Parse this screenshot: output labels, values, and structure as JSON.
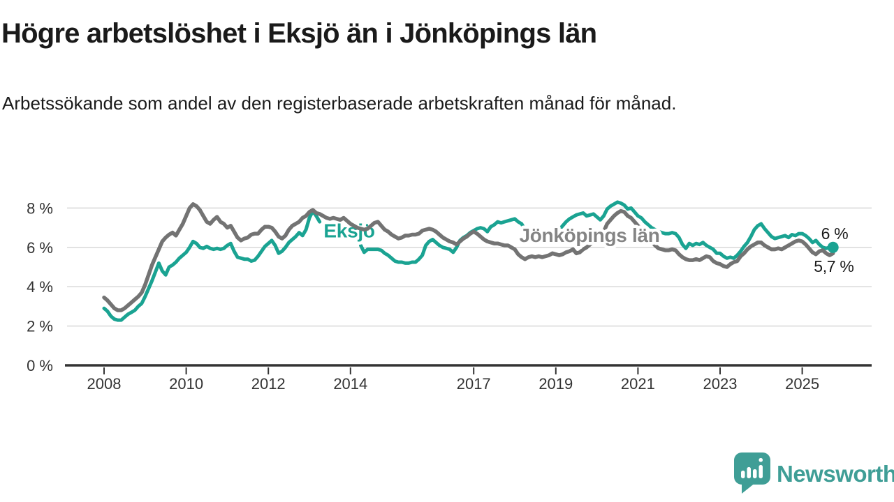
{
  "header": {
    "title": "Högre arbetslöshet i Eksjö än i Jönköpings län",
    "subtitle": "Arbetssökande som andel av den registerbaserade arbetskraften månad för månad."
  },
  "footer": {
    "logo_text": "Newsworthy"
  },
  "colors": {
    "eksjo_line": "#1aa392",
    "lan_line": "#737373",
    "lan_label": "#848484",
    "axis_text": "#333333",
    "gridline": "#d9d9d9",
    "axis_line": "#333333",
    "end_label_text": "#1a1a1a",
    "logo_teal": "#3f9e96",
    "background": "#ffffff"
  },
  "chart_data": {
    "type": "line",
    "title": "Högre arbetslöshet i Eksjö än i Jönköpings län",
    "subtitle": "Arbetssökande som andel av den registerbaserade arbetskraften månad för månad.",
    "unit": "%",
    "freq": "monthly",
    "x_start": "2008-01",
    "x_end": "2025-10",
    "ylim": [
      0,
      8.6
    ],
    "grid": "horizontal",
    "legend_position": "inline-labels",
    "y_ticks": [
      {
        "value": 8,
        "label": "8 %"
      },
      {
        "value": 6,
        "label": "6 %"
      },
      {
        "value": 4,
        "label": "4 %"
      },
      {
        "value": 2,
        "label": "2 %"
      },
      {
        "value": 0,
        "label": "0 %"
      }
    ],
    "x_ticks": [
      {
        "year": 2008,
        "label": "2008"
      },
      {
        "year": 2010,
        "label": "2010"
      },
      {
        "year": 2012,
        "label": "2012"
      },
      {
        "year": 2014,
        "label": "2014"
      },
      {
        "year": 2017,
        "label": "2017"
      },
      {
        "year": 2019,
        "label": "2019"
      },
      {
        "year": 2021,
        "label": "2021"
      },
      {
        "year": 2023,
        "label": "2023"
      },
      {
        "year": 2025,
        "label": "2025"
      }
    ],
    "series": [
      {
        "name": "Eksjö",
        "color": "#1aa392",
        "latest_value_label": "6 %",
        "values": [
          2.9,
          2.75,
          2.5,
          2.35,
          2.3,
          2.3,
          2.45,
          2.6,
          2.7,
          2.8,
          3.0,
          3.15,
          3.5,
          3.9,
          4.3,
          4.75,
          5.2,
          4.8,
          4.6,
          5.0,
          5.1,
          5.25,
          5.45,
          5.6,
          5.75,
          6.0,
          6.3,
          6.2,
          6.0,
          5.95,
          6.05,
          5.95,
          5.9,
          5.95,
          5.9,
          5.95,
          6.1,
          6.2,
          5.8,
          5.5,
          5.45,
          5.4,
          5.4,
          5.3,
          5.35,
          5.55,
          5.8,
          6.05,
          6.2,
          6.35,
          6.1,
          5.7,
          5.8,
          6.0,
          6.25,
          6.4,
          6.55,
          6.75,
          6.6,
          6.9,
          7.5,
          7.85,
          7.6,
          7.3,
          7.0,
          6.85,
          6.7,
          6.6,
          6.5,
          6.45,
          6.4,
          6.35,
          6.3,
          6.25,
          6.2,
          6.1,
          5.75,
          5.9,
          5.9,
          5.9,
          5.9,
          5.85,
          5.7,
          5.6,
          5.45,
          5.3,
          5.25,
          5.25,
          5.2,
          5.2,
          5.25,
          5.25,
          5.4,
          5.6,
          6.1,
          6.3,
          6.4,
          6.25,
          6.1,
          6.0,
          5.95,
          5.9,
          5.75,
          6.0,
          6.35,
          6.5,
          6.6,
          6.75,
          6.85,
          6.95,
          7.0,
          6.95,
          6.8,
          7.05,
          7.15,
          7.3,
          7.25,
          7.3,
          7.35,
          7.4,
          7.45,
          7.3,
          7.2,
          6.9,
          6.7,
          6.5,
          6.4,
          6.3,
          6.35,
          6.45,
          6.55,
          6.6,
          6.7,
          6.9,
          7.1,
          7.3,
          7.45,
          7.55,
          7.65,
          7.7,
          7.75,
          7.6,
          7.65,
          7.7,
          7.55,
          7.4,
          7.6,
          7.95,
          8.1,
          8.2,
          8.3,
          8.25,
          8.15,
          7.95,
          8.0,
          7.8,
          7.6,
          7.5,
          7.3,
          7.15,
          7.0,
          6.9,
          6.8,
          6.75,
          6.7,
          6.7,
          6.75,
          6.7,
          6.5,
          6.15,
          5.95,
          6.2,
          6.1,
          6.2,
          6.15,
          6.25,
          6.1,
          6.0,
          5.9,
          5.7,
          5.7,
          5.55,
          5.45,
          5.5,
          5.45,
          5.6,
          5.8,
          6.05,
          6.25,
          6.55,
          6.9,
          7.1,
          7.2,
          6.95,
          6.75,
          6.55,
          6.45,
          6.5,
          6.55,
          6.6,
          6.5,
          6.65,
          6.6,
          6.7,
          6.7,
          6.6,
          6.45,
          6.25,
          6.35,
          6.15,
          6.0,
          5.95,
          6.0,
          6.0
        ]
      },
      {
        "name": "Jönköpings län",
        "color": "#737373",
        "latest_value_label": "5,7 %",
        "values": [
          3.45,
          3.3,
          3.1,
          2.9,
          2.8,
          2.8,
          2.9,
          3.05,
          3.2,
          3.35,
          3.5,
          3.7,
          4.1,
          4.6,
          5.1,
          5.5,
          5.9,
          6.3,
          6.5,
          6.65,
          6.75,
          6.6,
          6.9,
          7.2,
          7.6,
          8.0,
          8.2,
          8.1,
          7.9,
          7.6,
          7.3,
          7.2,
          7.4,
          7.55,
          7.3,
          7.2,
          7.0,
          7.1,
          6.8,
          6.5,
          6.35,
          6.45,
          6.5,
          6.65,
          6.7,
          6.7,
          6.9,
          7.05,
          7.05,
          7.0,
          6.8,
          6.55,
          6.45,
          6.6,
          6.9,
          7.1,
          7.2,
          7.3,
          7.5,
          7.6,
          7.8,
          7.9,
          7.75,
          7.7,
          7.6,
          7.5,
          7.45,
          7.5,
          7.45,
          7.4,
          7.5,
          7.35,
          7.2,
          7.1,
          7.0,
          6.95,
          6.9,
          6.95,
          7.1,
          7.25,
          7.3,
          7.1,
          6.9,
          6.8,
          6.65,
          6.55,
          6.45,
          6.5,
          6.6,
          6.6,
          6.65,
          6.65,
          6.7,
          6.85,
          6.9,
          6.95,
          6.9,
          6.8,
          6.65,
          6.5,
          6.4,
          6.3,
          6.25,
          6.15,
          6.3,
          6.45,
          6.55,
          6.7,
          6.8,
          6.7,
          6.55,
          6.4,
          6.3,
          6.25,
          6.2,
          6.2,
          6.15,
          6.1,
          6.1,
          6.0,
          5.9,
          5.65,
          5.5,
          5.4,
          5.5,
          5.55,
          5.5,
          5.55,
          5.5,
          5.55,
          5.6,
          5.7,
          5.65,
          5.6,
          5.65,
          5.75,
          5.8,
          5.9,
          5.7,
          5.75,
          5.9,
          6.0,
          6.15,
          6.3,
          6.5,
          6.6,
          6.8,
          7.2,
          7.4,
          7.6,
          7.75,
          7.85,
          7.8,
          7.6,
          7.5,
          7.3,
          7.1,
          6.9,
          6.7,
          6.5,
          6.3,
          6.1,
          5.95,
          5.9,
          5.85,
          5.85,
          5.9,
          5.85,
          5.65,
          5.5,
          5.4,
          5.35,
          5.35,
          5.4,
          5.35,
          5.45,
          5.55,
          5.5,
          5.3,
          5.2,
          5.15,
          5.05,
          5.0,
          5.15,
          5.25,
          5.3,
          5.55,
          5.7,
          5.9,
          6.05,
          6.15,
          6.25,
          6.25,
          6.1,
          6.0,
          5.9,
          5.9,
          5.95,
          5.9,
          6.0,
          6.1,
          6.2,
          6.3,
          6.35,
          6.3,
          6.15,
          5.95,
          5.75,
          5.65,
          5.8,
          5.85,
          5.7,
          5.6,
          5.7
        ]
      }
    ],
    "annotations": [
      {
        "id": "eksjo-label",
        "text": "Eksjö",
        "t": 2013.97,
        "v": 6.5,
        "color": "#1aa392",
        "bold": true,
        "size": 28
      },
      {
        "id": "lan-label",
        "text": "Jönköpings län",
        "t": 2019.82,
        "v": 6.28,
        "color": "#848484",
        "bold": true,
        "size": 28
      },
      {
        "id": "end-label-eksjo",
        "text": "6 %",
        "t": 2025.79,
        "v": 6.42,
        "color": "#1a1a1a",
        "bold": false,
        "size": 23
      },
      {
        "id": "end-label-lan",
        "text": "5,7 %",
        "t": 2025.77,
        "v": 4.75,
        "color": "#1a1a1a",
        "bold": false,
        "size": 23
      }
    ],
    "end_dot": {
      "series": "Eksjö",
      "value": 6.0
    }
  }
}
